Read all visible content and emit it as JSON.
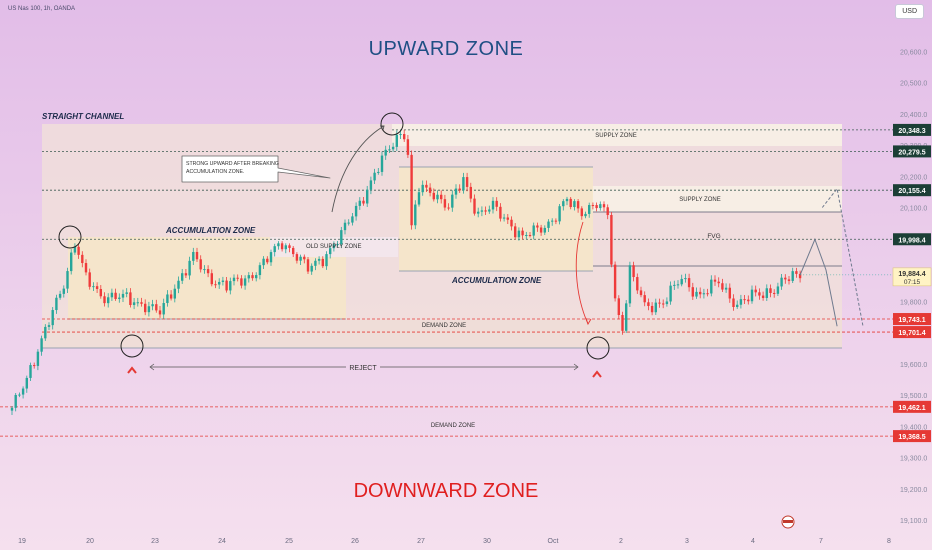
{
  "header": {
    "symbol": "US Nas 100, 1h, OANDA",
    "currency": "USD"
  },
  "zones_text": {
    "upward": "UPWARD ZONE",
    "downward": "DOWNWARD ZONE"
  },
  "colors": {
    "bg_top": "#e2bde8",
    "bg_bottom": "#f5e0ee",
    "up": "#26a69a",
    "down": "#ef3b3b",
    "zone_fill": "#f6e6c8",
    "grey_box": "#f3e8ef",
    "red_line": "#e53935",
    "dark_label": "#1c3f36"
  },
  "chart_data": {
    "type": "candlestick",
    "ylim": [
      19100,
      20700
    ],
    "y_ticks": [
      "20,600.0",
      "20,500.0",
      "20,400.0",
      "20,300.0",
      "20,200.0",
      "20,100.0",
      "19,900.0",
      "19,800.0",
      "19,600.0",
      "19,500.0",
      "19,400.0",
      "19,300.0",
      "19,200.0",
      "19,100.0"
    ],
    "x_ticks": [
      "19",
      "20",
      "23",
      "24",
      "25",
      "26",
      "27",
      "30",
      "Oct",
      "2",
      "3",
      "4",
      "7",
      "8"
    ],
    "price_labels": [
      {
        "value": "20,348.3",
        "style": "dark"
      },
      {
        "value": "20,279.5",
        "style": "dark"
      },
      {
        "value": "20,155.4",
        "style": "dark"
      },
      {
        "value": "19,998.4",
        "style": "dark"
      },
      {
        "value": "19,743.1",
        "style": "red"
      },
      {
        "value": "19,701.4",
        "style": "red"
      },
      {
        "value": "19,462.1",
        "style": "red"
      },
      {
        "value": "19,368.5",
        "style": "red"
      }
    ],
    "current_price": {
      "value": "19,884.4",
      "countdown": "07:15"
    },
    "annotations": {
      "straight_channel": "STRAIGHT CHANNEL",
      "accumulation_zone_1": "ACCUMULATION ZONE",
      "accumulation_zone_2": "ACCUMULATION ZONE",
      "old_supply_zone": "OLD SUPPLY ZONE",
      "supply_zone_1": "SUPPLY ZONE",
      "supply_zone_2": "SUPPLY ZONE",
      "fvg": "FVG",
      "demand_zone_1": "DEMAND ZONE",
      "demand_zone_2": "DEMAND ZONE",
      "reject": "REJECT",
      "callout": [
        "STRONG UPWARD AFTER BREAKING",
        "ACCUMULATION ZONE."
      ]
    },
    "anchors": [
      {
        "x": 0,
        "v": 19450
      },
      {
        "x": 4,
        "v": 19560
      },
      {
        "x": 9,
        "v": 19700
      },
      {
        "x": 14,
        "v": 19860
      },
      {
        "x": 17,
        "v": 19990
      },
      {
        "x": 20,
        "v": 19870
      },
      {
        "x": 24,
        "v": 19820
      },
      {
        "x": 30,
        "v": 19810
      },
      {
        "x": 36,
        "v": 19790
      },
      {
        "x": 40,
        "v": 19760
      },
      {
        "x": 44,
        "v": 19850
      },
      {
        "x": 49,
        "v": 19940
      },
      {
        "x": 53,
        "v": 19880
      },
      {
        "x": 58,
        "v": 19850
      },
      {
        "x": 63,
        "v": 19870
      },
      {
        "x": 68,
        "v": 19920
      },
      {
        "x": 73,
        "v": 19990
      },
      {
        "x": 76,
        "v": 19960
      },
      {
        "x": 80,
        "v": 19900
      },
      {
        "x": 84,
        "v": 19940
      },
      {
        "x": 89,
        "v": 20010
      },
      {
        "x": 93,
        "v": 20100
      },
      {
        "x": 97,
        "v": 20180
      },
      {
        "x": 101,
        "v": 20270
      },
      {
        "x": 104,
        "v": 20330
      },
      {
        "x": 106,
        "v": 20340
      },
      {
        "x": 107,
        "v": 20270
      },
      {
        "x": 108,
        "v": 20030
      },
      {
        "x": 110,
        "v": 20160
      },
      {
        "x": 114,
        "v": 20150
      },
      {
        "x": 118,
        "v": 20100
      },
      {
        "x": 122,
        "v": 20190
      },
      {
        "x": 126,
        "v": 20080
      },
      {
        "x": 130,
        "v": 20100
      },
      {
        "x": 134,
        "v": 20060
      },
      {
        "x": 138,
        "v": 20000
      },
      {
        "x": 142,
        "v": 20030
      },
      {
        "x": 146,
        "v": 20060
      },
      {
        "x": 150,
        "v": 20120
      },
      {
        "x": 154,
        "v": 20090
      },
      {
        "x": 158,
        "v": 20110
      },
      {
        "x": 161,
        "v": 20070
      },
      {
        "x": 163,
        "v": 19800
      },
      {
        "x": 165,
        "v": 19720
      },
      {
        "x": 167,
        "v": 19900
      },
      {
        "x": 171,
        "v": 19780
      },
      {
        "x": 176,
        "v": 19800
      },
      {
        "x": 181,
        "v": 19870
      },
      {
        "x": 186,
        "v": 19820
      },
      {
        "x": 191,
        "v": 19860
      },
      {
        "x": 196,
        "v": 19790
      },
      {
        "x": 201,
        "v": 19820
      },
      {
        "x": 206,
        "v": 19840
      },
      {
        "x": 211,
        "v": 19880
      },
      {
        "x": 213,
        "v": 19884
      }
    ],
    "projection_1": [
      [
        213,
        19884
      ],
      [
        217,
        19998
      ],
      [
        220,
        19900
      ],
      [
        223,
        19720
      ]
    ],
    "projection_2": [
      [
        219,
        20100
      ],
      [
        223,
        20160
      ],
      [
        230,
        19720
      ]
    ]
  }
}
